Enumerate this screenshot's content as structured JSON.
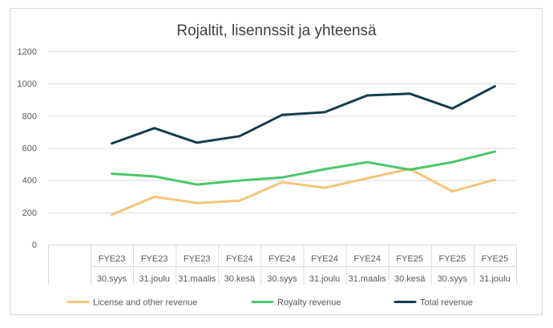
{
  "chart_data": {
    "type": "line",
    "title": "Rojaltit, lisennssit ja yhteensä",
    "xlabel": "",
    "ylabel": "",
    "ylim": [
      0,
      1200
    ],
    "yticks": [
      0,
      200,
      400,
      600,
      800,
      1000,
      1200
    ],
    "grid": true,
    "legend_position": "bottom",
    "categories_top": [
      "FYE23",
      "FYE23",
      "FYE23",
      "FYE24",
      "FYE24",
      "FYE24",
      "FYE24",
      "FYE25",
      "FYE25",
      "FYE25"
    ],
    "categories_bottom": [
      "30.syys",
      "31.joulu",
      "31.maalis",
      "30.kesä",
      "30.syys",
      "31.joulu",
      "31.maalis",
      "30.kesä",
      "30.syys",
      "31.joulu"
    ],
    "series": [
      {
        "name": "License and other revenue",
        "color": "#f5c57a",
        "values": [
          185,
          297,
          258,
          273,
          387,
          353,
          412,
          470,
          330,
          403
        ]
      },
      {
        "name": "Royalty revenue",
        "color": "#4cc66a",
        "values": [
          440,
          423,
          373,
          398,
          417,
          468,
          512,
          465,
          512,
          578
        ]
      },
      {
        "name": "Total revenue",
        "color": "#123e4d",
        "values": [
          628,
          723,
          633,
          673,
          805,
          822,
          926,
          937,
          845,
          983
        ]
      }
    ]
  },
  "colors": {
    "grid": "#d9d9d9",
    "axis_text": "#595959",
    "title": "#404040",
    "border": "#d9d9d9"
  }
}
